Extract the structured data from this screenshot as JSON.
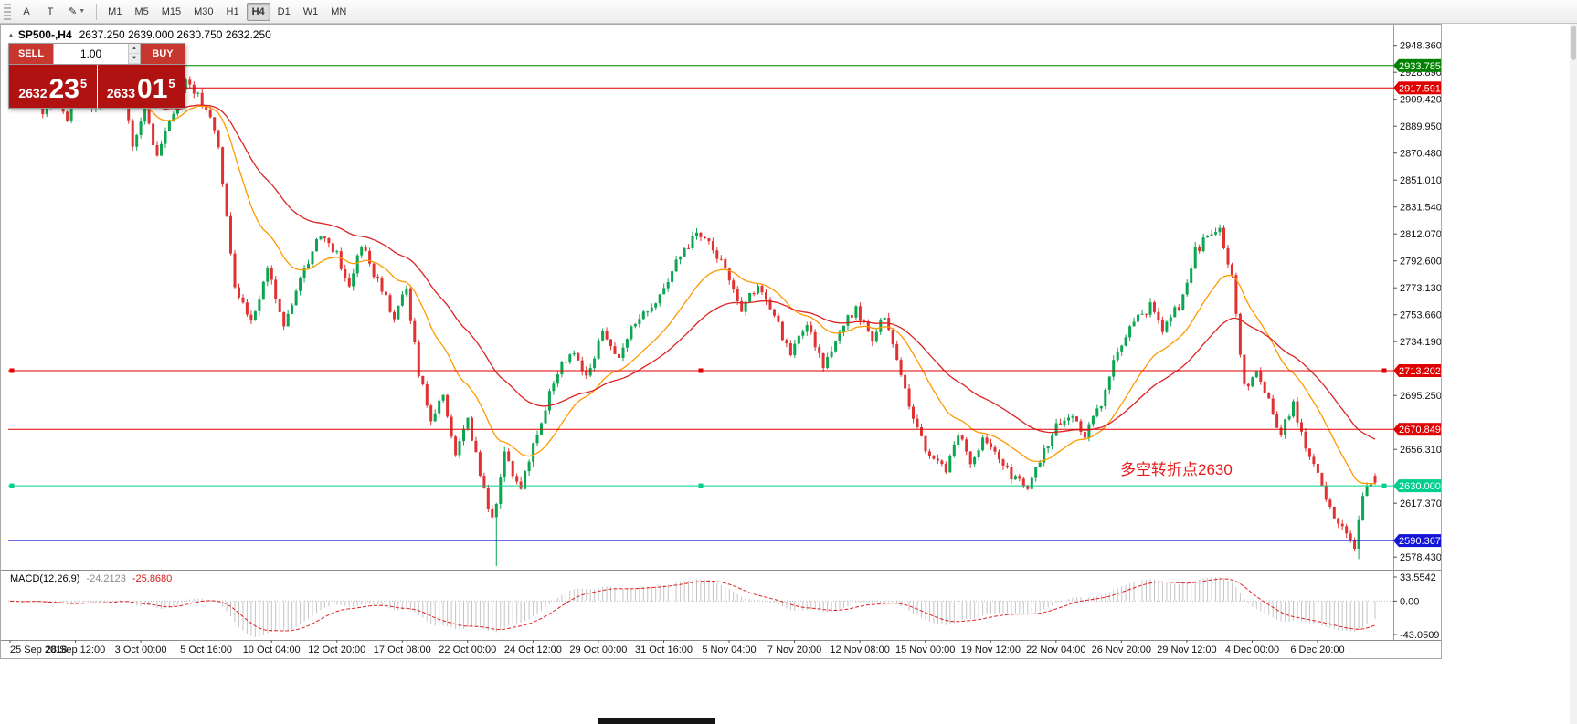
{
  "toolbar": {
    "icons": [
      {
        "name": "annotate-tool-icon",
        "glyph": "A",
        "has_dropdown": false
      },
      {
        "name": "text-tool-icon",
        "glyph": "T",
        "has_dropdown": false
      },
      {
        "name": "draw-tool-icon",
        "glyph": "✎",
        "has_dropdown": true
      }
    ],
    "timeframes": [
      "M1",
      "M5",
      "M15",
      "M30",
      "H1",
      "H4",
      "D1",
      "W1",
      "MN"
    ],
    "active_timeframe": "H4"
  },
  "chart_header": {
    "collapse_icon": "▲",
    "symbol_timeframe": "SP500-,H4",
    "ohlc_text": "2637.250 2639.000 2630.750 2632.250"
  },
  "trade_panel": {
    "sell_label": "SELL",
    "buy_label": "BUY",
    "volume": "1.00",
    "bid": {
      "main": "2632",
      "pips": "23",
      "sup": "5"
    },
    "ask": {
      "main": "2633",
      "pips": "01",
      "sup": "5"
    },
    "colors": {
      "button_red": "#c8372d",
      "price_box_red": "#b01111"
    }
  },
  "annotation": {
    "text": "多空转折点2630",
    "color": "#e81b1b"
  },
  "macd_panel": {
    "label": "MACD(12,26,9)",
    "main_value": "-24.2123",
    "signal_value": "-25.8680",
    "axis_labels": [
      "33.5542",
      "0.00",
      "-43.0509"
    ]
  },
  "price_axis": {
    "ticks": [
      "2948.360",
      "2928.890",
      "2909.420",
      "2889.950",
      "2870.480",
      "2851.010",
      "2831.540",
      "2812.070",
      "2792.600",
      "2773.130",
      "2753.660",
      "2734.190",
      "2695.250",
      "2656.310",
      "2617.370",
      "2578.430"
    ]
  },
  "time_axis": {
    "labels": [
      "25 Sep 2018",
      "28 Sep 12:00",
      "3 Oct 00:00",
      "5 Oct 16:00",
      "10 Oct 04:00",
      "12 Oct 20:00",
      "17 Oct 08:00",
      "22 Oct 00:00",
      "24 Oct 12:00",
      "29 Oct 00:00",
      "31 Oct 16:00",
      "5 Nov 04:00",
      "7 Nov 20:00",
      "12 Nov 08:00",
      "15 Nov 00:00",
      "19 Nov 12:00",
      "22 Nov 04:00",
      "26 Nov 20:00",
      "29 Nov 12:00",
      "4 Dec 00:00",
      "6 Dec 20:00"
    ]
  },
  "chart_data": {
    "type": "candlestick",
    "symbol": "SP500-",
    "timeframe": "H4",
    "last_bar": {
      "open": 2637.25,
      "high": 2639.0,
      "low": 2630.75,
      "close": 2632.25
    },
    "visible_price_range": [
      2570,
      2962
    ],
    "bars_count": 335,
    "price_path_anchors": [
      [
        0,
        2916
      ],
      [
        3,
        2907
      ],
      [
        6,
        2924
      ],
      [
        9,
        2900
      ],
      [
        12,
        2910
      ],
      [
        15,
        2896
      ],
      [
        18,
        2920
      ],
      [
        21,
        2904
      ],
      [
        24,
        2912
      ],
      [
        28,
        2918
      ],
      [
        31,
        2878
      ],
      [
        34,
        2902
      ],
      [
        37,
        2868
      ],
      [
        40,
        2895
      ],
      [
        44,
        2922
      ],
      [
        48,
        2908
      ],
      [
        52,
        2878
      ],
      [
        56,
        2772
      ],
      [
        60,
        2746
      ],
      [
        64,
        2788
      ],
      [
        68,
        2748
      ],
      [
        72,
        2778
      ],
      [
        77,
        2812
      ],
      [
        81,
        2798
      ],
      [
        84,
        2774
      ],
      [
        87,
        2806
      ],
      [
        90,
        2784
      ],
      [
        95,
        2752
      ],
      [
        98,
        2772
      ],
      [
        101,
        2712
      ],
      [
        104,
        2678
      ],
      [
        107,
        2698
      ],
      [
        110,
        2652
      ],
      [
        113,
        2676
      ],
      [
        116,
        2640
      ],
      [
        119,
        2604
      ],
      [
        122,
        2652
      ],
      [
        126,
        2628
      ],
      [
        130,
        2668
      ],
      [
        134,
        2705
      ],
      [
        138,
        2728
      ],
      [
        142,
        2708
      ],
      [
        146,
        2740
      ],
      [
        150,
        2720
      ],
      [
        154,
        2750
      ],
      [
        158,
        2756
      ],
      [
        162,
        2780
      ],
      [
        166,
        2800
      ],
      [
        169,
        2814
      ],
      [
        172,
        2806
      ],
      [
        176,
        2786
      ],
      [
        180,
        2758
      ],
      [
        184,
        2774
      ],
      [
        188,
        2752
      ],
      [
        192,
        2724
      ],
      [
        196,
        2746
      ],
      [
        200,
        2718
      ],
      [
        204,
        2742
      ],
      [
        208,
        2758
      ],
      [
        212,
        2736
      ],
      [
        215,
        2754
      ],
      [
        219,
        2712
      ],
      [
        222,
        2680
      ],
      [
        226,
        2650
      ],
      [
        230,
        2640
      ],
      [
        233,
        2668
      ],
      [
        236,
        2645
      ],
      [
        239,
        2665
      ],
      [
        243,
        2652
      ],
      [
        246,
        2635
      ],
      [
        250,
        2630
      ],
      [
        253,
        2650
      ],
      [
        257,
        2673
      ],
      [
        261,
        2680
      ],
      [
        264,
        2668
      ],
      [
        268,
        2690
      ],
      [
        272,
        2730
      ],
      [
        276,
        2748
      ],
      [
        280,
        2760
      ],
      [
        283,
        2744
      ],
      [
        287,
        2760
      ],
      [
        291,
        2800
      ],
      [
        295,
        2812
      ],
      [
        297,
        2814
      ],
      [
        300,
        2780
      ],
      [
        303,
        2700
      ],
      [
        306,
        2713
      ],
      [
        309,
        2690
      ],
      [
        312,
        2668
      ],
      [
        315,
        2688
      ],
      [
        318,
        2655
      ],
      [
        321,
        2640
      ],
      [
        324,
        2615
      ],
      [
        327,
        2600
      ],
      [
        330,
        2585
      ],
      [
        332,
        2622
      ],
      [
        334,
        2632
      ]
    ],
    "spike_lows": [
      [
        119,
        2572
      ],
      [
        330,
        2577
      ]
    ],
    "horizontal_lines": [
      {
        "price": 2933.785,
        "label": "2933.785",
        "color": "#008100",
        "selected": false
      },
      {
        "price": 2917.591,
        "label": "2917.591",
        "color": "#e00000",
        "selected": false
      },
      {
        "price": 2713.202,
        "label": "2713.202",
        "color": "#e00000",
        "selected": true
      },
      {
        "price": 2670.849,
        "label": "2670.849",
        "color": "#e00000",
        "selected": false
      },
      {
        "price": 2630.0,
        "label": "2630.000",
        "color": "#00cf8d",
        "selected": true
      },
      {
        "price": 2590.367,
        "label": "2590.367",
        "color": "#1515d8",
        "selected": false
      }
    ],
    "moving_averages": [
      {
        "type": "ema",
        "period": 20,
        "color": "#ff9900"
      },
      {
        "type": "ema",
        "period": 45,
        "color": "#dd2222"
      }
    ],
    "candle_colors": {
      "up": "#0ca551",
      "down": "#e03232"
    },
    "macd": {
      "fast": 12,
      "slow": 26,
      "signal_period": 9,
      "histogram_color": "#c4c4c4",
      "signal_color": "#e02020"
    }
  }
}
